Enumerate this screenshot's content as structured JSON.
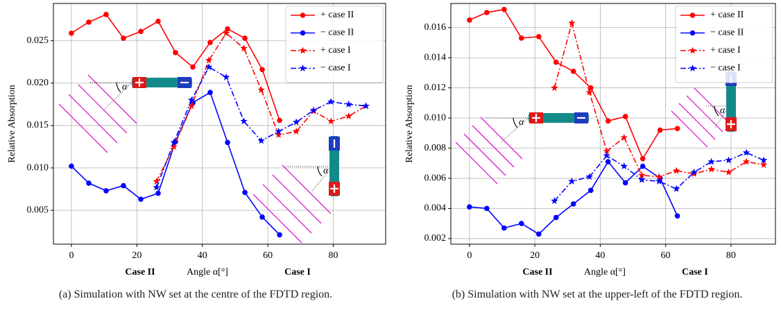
{
  "chart_data": [
    {
      "type": "line",
      "caption": "(a) Simulation with NW set at the centre of the FDTD region.",
      "xlabel": "Angle α[°]",
      "xlabel_left": "Case II",
      "xlabel_right": "Case I",
      "ylabel": "Relative Absorption",
      "diagram_label": "α",
      "xlim": [
        -5.5,
        96
      ],
      "ylim": [
        0.001,
        0.0294
      ],
      "xticks": [
        0,
        20,
        40,
        60,
        80
      ],
      "yticks": [
        0.005,
        {
          "value": 0.01,
          "label": "0.010"
        },
        0.015,
        {
          "value": 0.02,
          "label": "0.020"
        },
        0.025
      ],
      "grid": true,
      "legend": "upper right",
      "series": [
        {
          "name": "+ case II",
          "color": "#ff0000",
          "linestyle": "-",
          "marker": "circle",
          "x": [
            0,
            5.3,
            10.6,
            15.9,
            21.2,
            26.5,
            31.8,
            37.1,
            42.4,
            47.7,
            53,
            58.3,
            63.6
          ],
          "values": [
            0.0259,
            0.0272,
            0.0281,
            0.0253,
            0.0261,
            0.0273,
            0.0236,
            0.0219,
            0.0248,
            0.0264,
            0.0253,
            0.0216,
            0.0156
          ]
        },
        {
          "name": "− case II",
          "color": "#0000ff",
          "linestyle": "-",
          "marker": "circle",
          "x": [
            0,
            5.3,
            10.6,
            15.9,
            21.2,
            26.5,
            31.8,
            37.1,
            42.4,
            47.7,
            53,
            58.3,
            63.6
          ],
          "values": [
            0.0102,
            0.0082,
            0.0073,
            0.0079,
            0.0063,
            0.007,
            0.0131,
            0.0177,
            0.0189,
            0.013,
            0.0071,
            0.0042,
            0.0021
          ]
        },
        {
          "name": "+ case I",
          "color": "#ff0000",
          "linestyle": "-.",
          "marker": "star",
          "x": [
            26,
            31.3,
            36.7,
            42,
            47.3,
            52.7,
            58,
            63.3,
            68.7,
            74,
            79.3,
            84.7,
            90
          ],
          "values": [
            0.0084,
            0.0125,
            0.0173,
            0.0227,
            0.0259,
            0.0241,
            0.0192,
            0.0139,
            0.0143,
            0.0167,
            0.0155,
            0.0161,
            0.0173
          ]
        },
        {
          "name": "− case I",
          "color": "#0000ff",
          "linestyle": "-.",
          "marker": "star",
          "x": [
            26,
            31.3,
            36.7,
            42,
            47.3,
            52.7,
            58,
            63.3,
            68.7,
            74,
            79.3,
            84.7,
            90
          ],
          "values": [
            0.0077,
            0.013,
            0.018,
            0.0219,
            0.0207,
            0.0155,
            0.0132,
            0.0143,
            0.0154,
            0.0168,
            0.0178,
            0.0175,
            0.0173
          ]
        }
      ]
    },
    {
      "type": "line",
      "caption": "(b) Simulation with NW set at the upper-left of the FDTD region.",
      "xlabel": "Angle α[°]",
      "xlabel_left": "Case II",
      "xlabel_right": "Case I",
      "ylabel": "Relative Absorption",
      "diagram_label": "α",
      "xlim": [
        -5.7,
        93.6
      ],
      "ylim": [
        0.00163,
        0.0176
      ],
      "xticks": [
        0,
        20,
        40,
        60,
        80
      ],
      "yticks": [
        0.002,
        0.004,
        0.006,
        0.008,
        {
          "value": 0.01,
          "label": "0.010"
        },
        0.012,
        0.014,
        0.016
      ],
      "grid": true,
      "legend": "upper right",
      "series": [
        {
          "name": "+ case II",
          "color": "#ff0000",
          "linestyle": "-",
          "marker": "circle",
          "x": [
            0,
            5.3,
            10.6,
            15.9,
            21.2,
            26.5,
            31.8,
            37.1,
            42.4,
            47.7,
            53,
            58.3,
            63.6
          ],
          "values": [
            0.0165,
            0.017,
            0.0172,
            0.0153,
            0.0154,
            0.0137,
            0.0131,
            0.012,
            0.0098,
            0.0101,
            0.0073,
            0.0092,
            0.0093
          ]
        },
        {
          "name": "− case II",
          "color": "#0000ff",
          "linestyle": "-",
          "marker": "circle",
          "x": [
            0,
            5.3,
            10.6,
            15.9,
            21.2,
            26.5,
            31.8,
            37.1,
            42.4,
            47.7,
            53,
            58.3,
            63.6
          ],
          "values": [
            0.0041,
            0.004,
            0.0027,
            0.003,
            0.0023,
            0.0034,
            0.0043,
            0.0052,
            0.0071,
            0.0057,
            0.0068,
            0.006,
            0.0035
          ]
        },
        {
          "name": "+ case I",
          "color": "#ff0000",
          "linestyle": "-.",
          "marker": "star",
          "x": [
            26,
            31.3,
            36.7,
            42,
            47.3,
            52.7,
            58,
            63.3,
            68.7,
            74,
            79.3,
            84.7,
            90
          ],
          "values": [
            0.012,
            0.0163,
            0.0117,
            0.0078,
            0.0087,
            0.0062,
            0.0061,
            0.0065,
            0.0063,
            0.0066,
            0.0064,
            0.0071,
            0.0069
          ]
        },
        {
          "name": "− case I",
          "color": "#0000ff",
          "linestyle": "-.",
          "marker": "star",
          "x": [
            26,
            31.3,
            36.7,
            42,
            47.3,
            52.7,
            58,
            63.3,
            68.7,
            74,
            79.3,
            84.7,
            90
          ],
          "values": [
            0.0045,
            0.0058,
            0.0061,
            0.0075,
            0.0068,
            0.0059,
            0.0058,
            0.0053,
            0.0064,
            0.0071,
            0.0072,
            0.0077,
            0.0072
          ]
        }
      ]
    }
  ]
}
